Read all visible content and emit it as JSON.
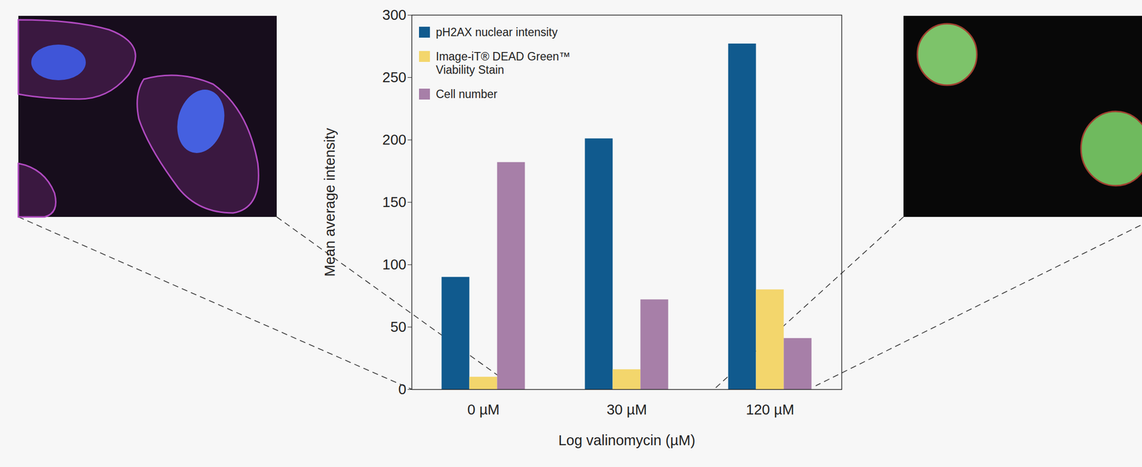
{
  "chart_data": {
    "type": "bar",
    "categories": [
      "0 µM",
      "30 µM",
      "120 µM"
    ],
    "xlabel": "Log valinomycin (µM)",
    "ylabel": "Mean average intensity",
    "ylim": [
      0,
      300
    ],
    "yticks": [
      0,
      50,
      100,
      150,
      200,
      250,
      300
    ],
    "legend": "top-left",
    "series": [
      {
        "name": "pH2AX nuclear intensity",
        "color": "#105a8e",
        "values": [
          90,
          201,
          277
        ]
      },
      {
        "name": "Image-iT® DEAD Green™ Viability Stain",
        "color": "#f3d66c",
        "values": [
          10,
          16,
          80
        ]
      },
      {
        "name": "Cell number",
        "color": "#a77fa8",
        "values": [
          182,
          72,
          41
        ]
      }
    ]
  }
}
